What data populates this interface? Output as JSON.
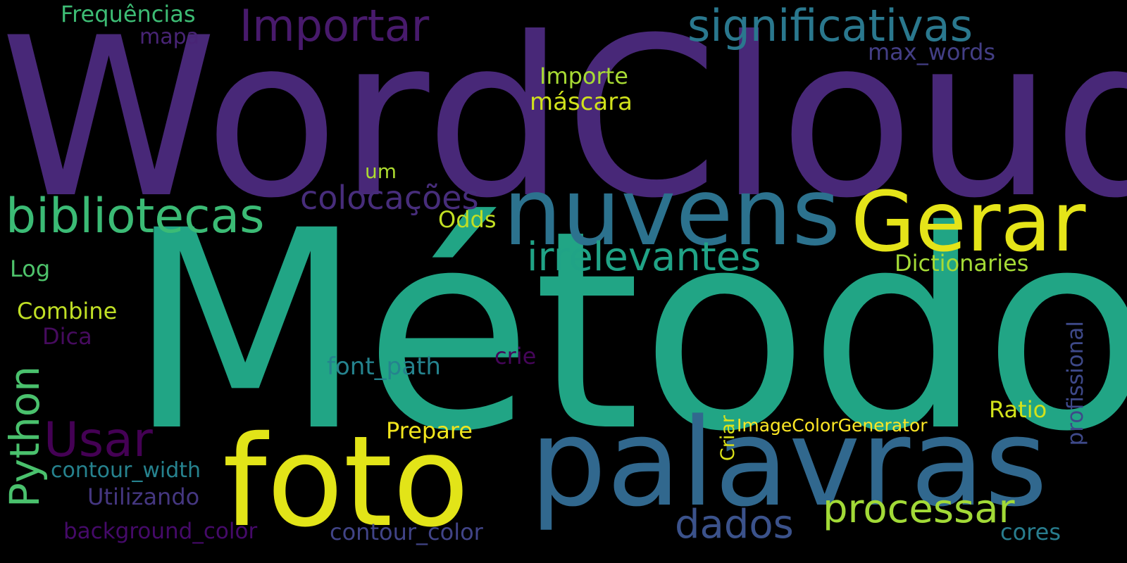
{
  "words": [
    {
      "text": "WordCloud",
      "color": "#482878"
    },
    {
      "text": "Método",
      "color": "#21a585"
    },
    {
      "text": "palavras",
      "color": "#31688e"
    },
    {
      "text": "foto",
      "color": "#e2e418"
    },
    {
      "text": "nuvens",
      "color": "#2c728e"
    },
    {
      "text": "Gerar",
      "color": "#e5e419"
    },
    {
      "text": "bibliotecas",
      "color": "#3bbb75"
    },
    {
      "text": "significativas",
      "color": "#2a788e"
    },
    {
      "text": "Importar",
      "color": "#481a6c"
    },
    {
      "text": "irrelevantes",
      "color": "#20a386"
    },
    {
      "text": "processar",
      "color": "#a2da37"
    },
    {
      "text": "dados",
      "color": "#3b528b"
    },
    {
      "text": "colocações",
      "color": "#472d7b"
    },
    {
      "text": "Python",
      "color": "#4ac16d"
    },
    {
      "text": "Usar",
      "color": "#440154"
    },
    {
      "text": "Frequências",
      "color": "#3dbc74"
    },
    {
      "text": "mapa",
      "color": "#482475"
    },
    {
      "text": "max_words",
      "color": "#433e85"
    },
    {
      "text": "Importe",
      "color": "#a8db34"
    },
    {
      "text": "máscara",
      "color": "#d0e11c"
    },
    {
      "text": "um",
      "color": "#addc30"
    },
    {
      "text": "Odds",
      "color": "#c2df23"
    },
    {
      "text": "Log",
      "color": "#4ec36b"
    },
    {
      "text": "Dictionaries",
      "color": "#a5db36"
    },
    {
      "text": "Combine",
      "color": "#c0df25"
    },
    {
      "text": "Dica",
      "color": "#460b5e"
    },
    {
      "text": "crie",
      "color": "#450559"
    },
    {
      "text": "font_path",
      "color": "#25838e"
    },
    {
      "text": "profissional",
      "color": "#3e4989"
    },
    {
      "text": "Ratio",
      "color": "#d2e21b"
    },
    {
      "text": "Prepare",
      "color": "#f1e51d"
    },
    {
      "text": "ImageColorGenerator",
      "color": "#fde725"
    },
    {
      "text": "Criar",
      "color": "#dde318"
    },
    {
      "text": "contour_width",
      "color": "#26828e"
    },
    {
      "text": "Utilizando",
      "color": "#453781"
    },
    {
      "text": "background_color",
      "color": "#450a69"
    },
    {
      "text": "contour_color",
      "color": "#414487"
    },
    {
      "text": "cores",
      "color": "#287d8e"
    }
  ]
}
